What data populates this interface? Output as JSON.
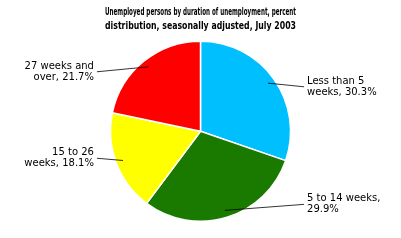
{
  "chart_data": {
    "type": "pie",
    "title": "Unemployed persons by duration of unemployment, percent\ndistribution, seasonally adjusted, July 2003",
    "values": [
      30.3,
      29.9,
      18.1,
      21.7
    ],
    "value_labels": [
      "Less than 5\nweeks, 30.3%",
      "5 to 14 weeks,\n29.9%",
      "15 to 26\nweeks, 18.1%",
      "27 weeks and\nover, 21.7%"
    ],
    "data_labels": true,
    "colors": [
      "#00BFFF",
      "#1a7a00",
      "#FFFF00",
      "#FF0000"
    ]
  }
}
